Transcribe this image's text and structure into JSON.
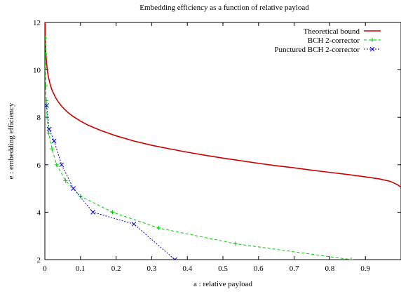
{
  "chart_data": {
    "type": "line",
    "title": "Embedding efficiency as a function of relative payload",
    "xlabel": "a : relative payload",
    "ylabel": "e : embedding efficiency",
    "xlim": [
      0,
      1
    ],
    "ylim": [
      2,
      12
    ],
    "xticks": [
      0,
      0.1,
      0.2,
      0.3,
      0.4,
      0.5,
      0.6,
      0.7,
      0.8,
      0.9
    ],
    "xtick_labels": [
      "0",
      "0.1",
      "0.2",
      "0.3",
      "0.4",
      "0.5",
      "0.6",
      "0.7",
      "0.8",
      "0.9"
    ],
    "yticks": [
      2,
      4,
      6,
      8,
      10,
      12
    ],
    "ytick_labels": [
      "2",
      "4",
      "6",
      "8",
      "10",
      "12"
    ],
    "grid": false,
    "legend_position": "top-right",
    "series": [
      {
        "name": "Theoretical bound",
        "color": "#cc0000",
        "style": "solid",
        "marker": "none",
        "points": [
          [
            0.0006,
            12.0
          ],
          [
            0.001,
            11.5
          ],
          [
            0.002,
            10.96
          ],
          [
            0.003,
            10.64
          ],
          [
            0.005,
            10.24
          ],
          [
            0.0075,
            9.92
          ],
          [
            0.01,
            9.7
          ],
          [
            0.015,
            9.38
          ],
          [
            0.02,
            9.15
          ],
          [
            0.03,
            8.83
          ],
          [
            0.04,
            8.6
          ],
          [
            0.05,
            8.42
          ],
          [
            0.06,
            8.27
          ],
          [
            0.07,
            8.14
          ],
          [
            0.08,
            8.03
          ],
          [
            0.1,
            7.84
          ],
          [
            0.12,
            7.68
          ],
          [
            0.14,
            7.55
          ],
          [
            0.16,
            7.43
          ],
          [
            0.18,
            7.32
          ],
          [
            0.2,
            7.22
          ],
          [
            0.25,
            7.0
          ],
          [
            0.3,
            6.82
          ],
          [
            0.35,
            6.67
          ],
          [
            0.4,
            6.53
          ],
          [
            0.45,
            6.4
          ],
          [
            0.5,
            6.28
          ],
          [
            0.55,
            6.17
          ],
          [
            0.6,
            6.06
          ],
          [
            0.65,
            5.96
          ],
          [
            0.7,
            5.87
          ],
          [
            0.75,
            5.77
          ],
          [
            0.8,
            5.68
          ],
          [
            0.85,
            5.59
          ],
          [
            0.9,
            5.49
          ],
          [
            0.94,
            5.4
          ],
          [
            0.97,
            5.3
          ],
          [
            0.99,
            5.16
          ],
          [
            1.0,
            5.05
          ]
        ]
      },
      {
        "name": "BCH 2-corrector",
        "color": "#00cc00",
        "style": "dashed",
        "marker": "plus",
        "points": [
          [
            0.0005,
            11.35
          ],
          [
            0.001,
            10.67
          ],
          [
            0.002,
            9.33
          ],
          [
            0.004,
            8.7
          ],
          [
            0.006,
            8.0
          ],
          [
            0.011,
            7.33
          ],
          [
            0.02,
            6.67
          ],
          [
            0.033,
            6.0
          ],
          [
            0.058,
            5.33
          ],
          [
            0.1,
            4.67
          ],
          [
            0.19,
            4.0
          ],
          [
            0.32,
            3.33
          ],
          [
            0.535,
            2.67
          ],
          [
            0.86,
            2.0
          ]
        ]
      },
      {
        "name": "Punctured BCH 2-corrector",
        "color": "#0000cc",
        "style": "dotted",
        "marker": "cross",
        "points": [
          [
            0.005,
            8.5
          ],
          [
            0.012,
            7.5
          ],
          [
            0.026,
            7.0
          ],
          [
            0.047,
            6.0
          ],
          [
            0.08,
            5.0
          ],
          [
            0.135,
            4.0
          ],
          [
            0.25,
            3.5
          ],
          [
            0.365,
            2.0
          ]
        ]
      }
    ]
  }
}
